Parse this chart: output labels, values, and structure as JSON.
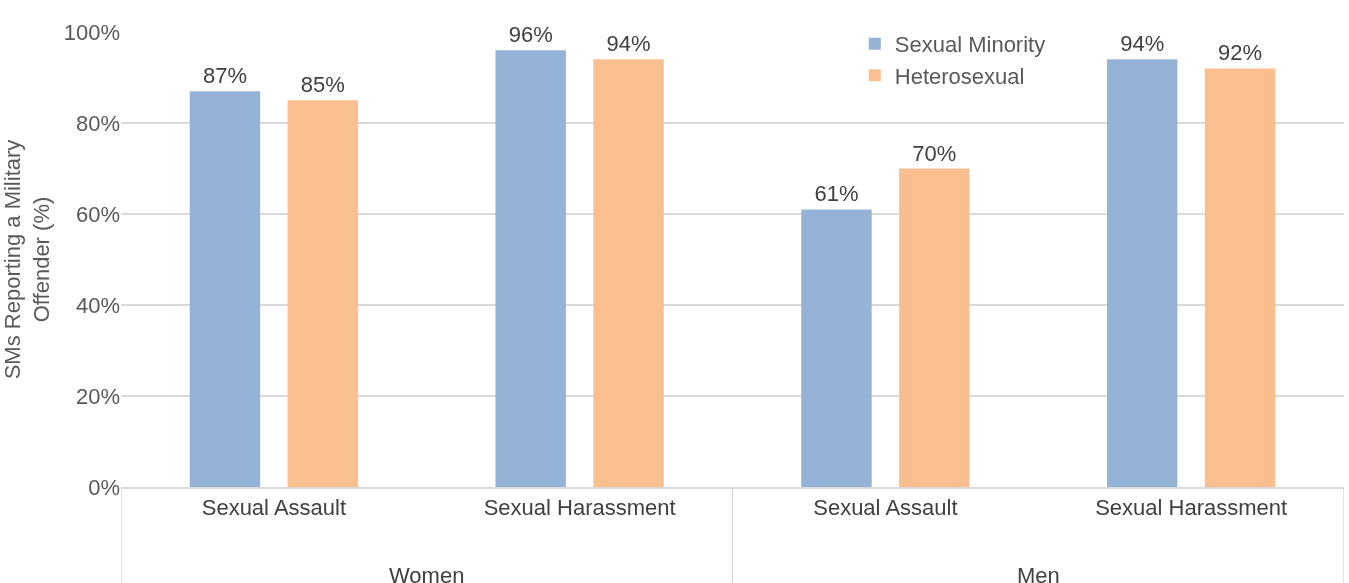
{
  "chart_data": {
    "type": "bar",
    "ylabel": "SMs Reporting a Military Offender (%)",
    "categories": [
      "Sexual Assault",
      "Sexual Harassment",
      "Sexual Assault",
      "Sexual Harassment"
    ],
    "series": [
      {
        "name": "Sexual Minority",
        "color": "#95b3d7",
        "values": [
          87,
          96,
          61,
          94
        ],
        "value_labels": [
          "87%",
          "96%",
          "61%",
          "94%"
        ]
      },
      {
        "name": "Heterosexual",
        "color": "#f9bf8f",
        "values": [
          85,
          94,
          70,
          92
        ],
        "value_labels": [
          "85%",
          "94%",
          "70%",
          "92%"
        ]
      }
    ],
    "annotations": [
      "Women",
      "Men"
    ],
    "ylim": [
      0,
      100
    ],
    "yticks": [
      {
        "value": 0,
        "label": "0%"
      },
      {
        "value": 20,
        "label": "20%"
      },
      {
        "value": 40,
        "label": "40%"
      },
      {
        "value": 60,
        "label": "60%"
      },
      {
        "value": 80,
        "label": "80%"
      },
      {
        "value": 100,
        "label": "100%"
      }
    ],
    "grid": "y",
    "legend": "top"
  }
}
